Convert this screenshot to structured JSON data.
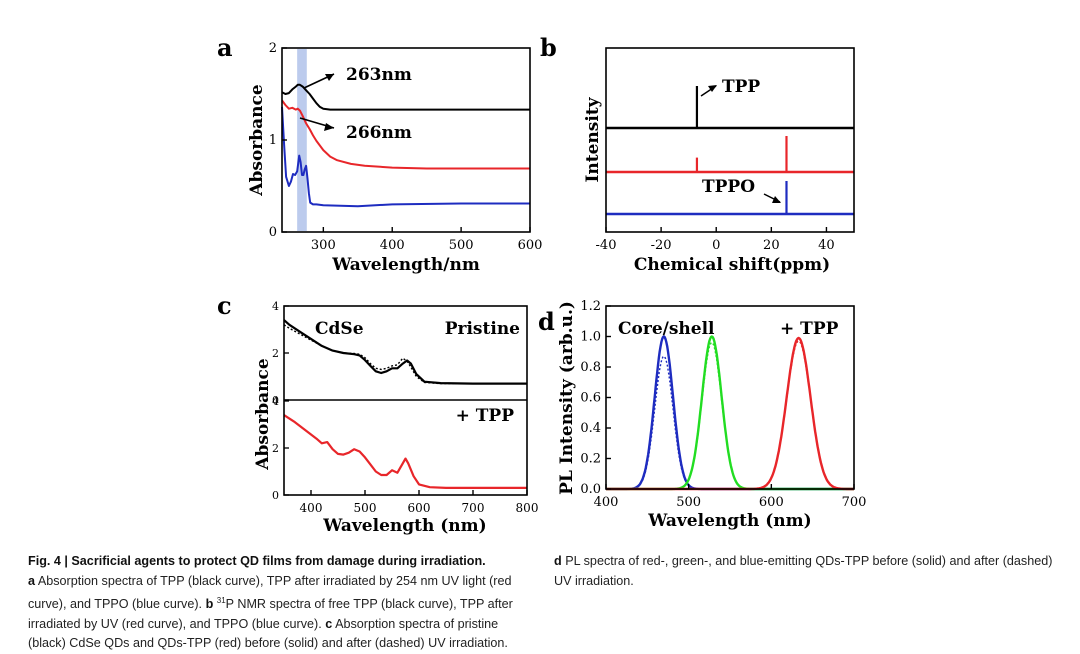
{
  "figure": {
    "panel_labels": [
      "a",
      "b",
      "c",
      "d"
    ]
  },
  "caption": {
    "title": "Fig. 4 | Sacrificial agents to protect QD films from damage during irradiation.",
    "a_label": "a",
    "a_text": "Absorption spectra of TPP (black curve), TPP after irradiated by 254 nm UV light (red curve), and TPPO (blue curve).",
    "b_label": "b",
    "b_sup": "31",
    "b_text": "P NMR spectra of free TPP (black curve), TPP after irradiated by UV (red curve), and TPPO (blue curve).",
    "c_label": "c",
    "c_text": "Absorption spectra of pristine (black) CdSe QDs and QDs-TPP (red) before (solid) and after (dashed) UV irradiation.",
    "d_label": "d",
    "d_text": "PL spectra of red-, green-, and blue-emitting QDs-TPP before (solid) and after (dashed) UV irradiation."
  },
  "colors": {
    "black": "#000000",
    "red": "#e8262a",
    "blue": "#1e2cc0",
    "green": "#22dd22",
    "highlight": "#b8c8ec"
  },
  "chart_data": [
    {
      "panel": "a",
      "type": "line",
      "xlabel": "Wavelength/nm",
      "ylabel": "Absorbance",
      "xlim": [
        240,
        600
      ],
      "ylim": [
        0,
        2
      ],
      "xticks": [
        300,
        400,
        500,
        600
      ],
      "yticks": [
        0,
        1,
        2
      ],
      "highlight_band": [
        262,
        276
      ],
      "annotations": [
        "263nm",
        "266nm"
      ],
      "series": [
        {
          "name": "TPP",
          "color": "black",
          "x": [
            240,
            245,
            250,
            255,
            260,
            263,
            266,
            270,
            275,
            280,
            285,
            290,
            295,
            300,
            310,
            320,
            340,
            400,
            500,
            600
          ],
          "y": [
            1.52,
            1.5,
            1.51,
            1.55,
            1.58,
            1.6,
            1.6,
            1.58,
            1.54,
            1.5,
            1.45,
            1.4,
            1.36,
            1.34,
            1.33,
            1.33,
            1.33,
            1.33,
            1.33,
            1.33
          ]
        },
        {
          "name": "TPP after UV",
          "color": "red",
          "x": [
            240,
            245,
            250,
            255,
            260,
            263,
            266,
            270,
            275,
            280,
            285,
            290,
            300,
            310,
            320,
            340,
            360,
            400,
            450,
            500,
            600
          ],
          "y": [
            1.43,
            1.38,
            1.34,
            1.35,
            1.33,
            1.34,
            1.32,
            1.26,
            1.18,
            1.12,
            1.05,
            0.99,
            0.89,
            0.82,
            0.78,
            0.74,
            0.72,
            0.7,
            0.69,
            0.69,
            0.69
          ]
        },
        {
          "name": "TPPO",
          "color": "blue",
          "x": [
            240,
            243,
            246,
            250,
            253,
            256,
            259,
            262,
            265,
            267,
            269,
            271,
            273,
            275,
            277,
            279,
            281,
            285,
            290,
            300,
            350,
            400,
            500,
            600
          ],
          "y": [
            1.36,
            0.95,
            0.6,
            0.5,
            0.55,
            0.63,
            0.62,
            0.66,
            0.83,
            0.76,
            0.62,
            0.62,
            0.68,
            0.72,
            0.58,
            0.42,
            0.32,
            0.3,
            0.3,
            0.29,
            0.28,
            0.3,
            0.31,
            0.31
          ]
        }
      ]
    },
    {
      "panel": "b",
      "type": "line",
      "xlabel": "Chemical shift(ppm)",
      "ylabel": "Intensity",
      "xlim": [
        -40,
        50
      ],
      "xticks": [
        -40,
        -20,
        0,
        20,
        40
      ],
      "annotations": [
        "TPP",
        "TPPO"
      ],
      "series": [
        {
          "name": "TPP",
          "color": "black",
          "baseline": 2,
          "peaks": [
            {
              "x": -7,
              "height": 0.7
            }
          ]
        },
        {
          "name": "TPP after UV",
          "color": "red",
          "baseline": 1,
          "peaks": [
            {
              "x": -7,
              "height": 0.24
            },
            {
              "x": 25.5,
              "height": 0.6
            }
          ]
        },
        {
          "name": "TPPO",
          "color": "blue",
          "baseline": 0,
          "peaks": [
            {
              "x": 25.5,
              "height": 0.55
            }
          ]
        }
      ]
    },
    {
      "panel": "c",
      "type": "line",
      "xlabel": "Wavelength (nm)",
      "ylabel": "Absorbance",
      "xlim": [
        350,
        800
      ],
      "ylim": [
        0,
        4
      ],
      "xticks": [
        400,
        500,
        600,
        700,
        800
      ],
      "yticks": [
        0,
        2,
        4
      ],
      "subplots": [
        {
          "label_left": "CdSe",
          "label_right": "Pristine",
          "series": [
            {
              "name": "CdSe before",
              "color": "black",
              "style": "solid",
              "x": [
                350,
                360,
                380,
                400,
                420,
                440,
                460,
                480,
                490,
                500,
                510,
                520,
                530,
                540,
                550,
                560,
                570,
                578,
                585,
                595,
                610,
                640,
                700,
                800
              ],
              "y": [
                3.4,
                3.2,
                2.9,
                2.6,
                2.3,
                2.1,
                2.0,
                1.95,
                1.9,
                1.7,
                1.45,
                1.22,
                1.15,
                1.22,
                1.35,
                1.35,
                1.55,
                1.68,
                1.55,
                1.1,
                0.78,
                0.72,
                0.7,
                0.7
              ]
            },
            {
              "name": "CdSe after",
              "color": "black",
              "style": "dashed",
              "x": [
                350,
                360,
                380,
                400,
                420,
                440,
                460,
                480,
                490,
                500,
                510,
                520,
                530,
                540,
                550,
                560,
                570,
                578,
                585,
                595,
                610,
                640,
                700,
                800
              ],
              "y": [
                3.2,
                3.05,
                2.8,
                2.55,
                2.3,
                2.1,
                2.0,
                1.98,
                1.95,
                1.8,
                1.55,
                1.35,
                1.3,
                1.35,
                1.45,
                1.5,
                1.78,
                1.65,
                1.4,
                1.0,
                0.75,
                0.7,
                0.7,
                0.7
              ]
            }
          ]
        },
        {
          "label_right": "+ TPP",
          "series": [
            {
              "name": "QDs-TPP before",
              "color": "red",
              "style": "solid",
              "x": [
                350,
                370,
                390,
                410,
                420,
                430,
                440,
                450,
                460,
                470,
                480,
                490,
                500,
                510,
                520,
                530,
                540,
                550,
                560,
                570,
                575,
                580,
                590,
                600,
                620,
                650,
                700,
                800
              ],
              "y": [
                3.4,
                3.1,
                2.75,
                2.4,
                2.2,
                2.25,
                1.95,
                1.75,
                1.72,
                1.8,
                1.95,
                1.85,
                1.6,
                1.3,
                1.0,
                0.85,
                0.85,
                1.05,
                0.95,
                1.35,
                1.55,
                1.35,
                0.8,
                0.45,
                0.33,
                0.3,
                0.3,
                0.3
              ]
            },
            {
              "name": "QDs-TPP after",
              "color": "red",
              "style": "dashed",
              "x": [
                350,
                370,
                390,
                410,
                420,
                430,
                440,
                450,
                460,
                470,
                480,
                490,
                500,
                510,
                520,
                530,
                540,
                550,
                560,
                570,
                575,
                580,
                590,
                600,
                620,
                650,
                700,
                800
              ],
              "y": [
                3.4,
                3.1,
                2.75,
                2.4,
                2.2,
                2.25,
                1.95,
                1.75,
                1.72,
                1.8,
                1.95,
                1.85,
                1.6,
                1.3,
                1.0,
                0.85,
                0.85,
                1.05,
                0.95,
                1.35,
                1.55,
                1.35,
                0.8,
                0.45,
                0.33,
                0.3,
                0.3,
                0.3
              ]
            }
          ]
        }
      ]
    },
    {
      "panel": "d",
      "type": "line",
      "xlabel": "Wavelength (nm)",
      "ylabel": "PL Intensity (arb.u.)",
      "xlim": [
        400,
        700
      ],
      "ylim": [
        0,
        1.2
      ],
      "xticks": [
        400,
        500,
        600,
        700
      ],
      "yticks": [
        0.0,
        0.2,
        0.4,
        0.6,
        0.8,
        1.0,
        1.2
      ],
      "annotations": [
        "Core/shell",
        "+ TPP"
      ],
      "series": [
        {
          "name": "Blue before",
          "color": "blue",
          "style": "solid",
          "center": 470,
          "fwhm": 26,
          "amplitude": 1.0
        },
        {
          "name": "Blue after",
          "color": "blue",
          "style": "dashed",
          "center": 470,
          "fwhm": 26,
          "amplitude": 0.87
        },
        {
          "name": "Green before",
          "color": "green",
          "style": "solid",
          "center": 528,
          "fwhm": 28,
          "amplitude": 1.0
        },
        {
          "name": "Green after",
          "color": "green",
          "style": "dashed",
          "center": 528,
          "fwhm": 28,
          "amplitude": 0.96
        },
        {
          "name": "Red before",
          "color": "red",
          "style": "solid",
          "center": 633,
          "fwhm": 34,
          "amplitude": 0.99
        },
        {
          "name": "Red after",
          "color": "red",
          "style": "dashed",
          "center": 633,
          "fwhm": 34,
          "amplitude": 0.97
        }
      ]
    }
  ]
}
